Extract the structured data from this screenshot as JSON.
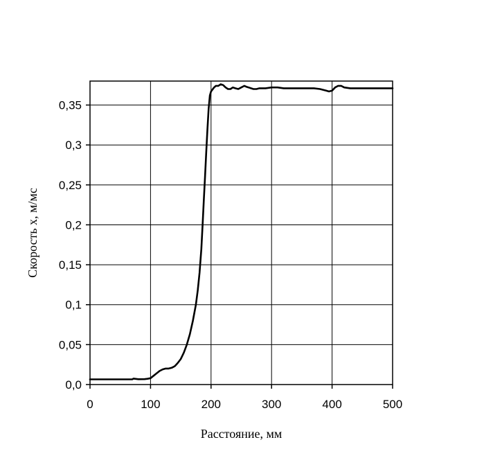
{
  "chart_data": {
    "type": "line",
    "title": "",
    "xlabel": "Расстояние, мм",
    "ylabel": "Скорость x, м/мс",
    "xlim": [
      0,
      500
    ],
    "ylim": [
      0,
      0.38
    ],
    "x_ticks": [
      0,
      100,
      200,
      300,
      400,
      500
    ],
    "x_tick_labels": [
      "0",
      "100",
      "200",
      "300",
      "400",
      "500"
    ],
    "y_ticks": [
      0.0,
      0.05,
      0.1,
      0.15,
      0.2,
      0.25,
      0.3,
      0.35
    ],
    "y_tick_labels": [
      "0,0",
      "0,05",
      "0,1",
      "0,15",
      "0,2",
      "0,25",
      "0,3",
      "0,35"
    ],
    "grid": true,
    "series": [
      {
        "x": [
          0,
          30,
          60,
          70,
          72,
          80,
          90,
          95,
          100,
          105,
          110,
          115,
          120,
          125,
          130,
          135,
          140,
          145,
          150,
          155,
          160,
          165,
          170,
          175,
          178,
          181,
          184,
          186,
          188,
          190,
          192,
          194,
          196,
          198,
          200,
          202,
          205,
          208,
          212,
          216,
          220,
          224,
          228,
          232,
          236,
          240,
          245,
          250,
          255,
          258,
          262,
          266,
          270,
          275,
          280,
          290,
          300,
          310,
          320,
          330,
          340,
          350,
          360,
          370,
          380,
          390,
          395,
          400,
          405,
          410,
          415,
          420,
          430,
          440,
          450,
          460,
          470,
          480,
          490,
          500
        ],
        "y": [
          0.0065,
          0.0065,
          0.0065,
          0.0066,
          0.0075,
          0.0067,
          0.0068,
          0.0072,
          0.008,
          0.011,
          0.014,
          0.017,
          0.019,
          0.02,
          0.02,
          0.021,
          0.023,
          0.027,
          0.032,
          0.04,
          0.05,
          0.063,
          0.08,
          0.1,
          0.118,
          0.14,
          0.17,
          0.2,
          0.23,
          0.26,
          0.29,
          0.32,
          0.345,
          0.362,
          0.367,
          0.369,
          0.372,
          0.374,
          0.374,
          0.376,
          0.375,
          0.372,
          0.37,
          0.37,
          0.372,
          0.371,
          0.37,
          0.372,
          0.374,
          0.373,
          0.372,
          0.371,
          0.37,
          0.37,
          0.371,
          0.371,
          0.372,
          0.372,
          0.371,
          0.371,
          0.371,
          0.371,
          0.371,
          0.371,
          0.37,
          0.368,
          0.367,
          0.368,
          0.372,
          0.374,
          0.374,
          0.372,
          0.371,
          0.371,
          0.371,
          0.371,
          0.371,
          0.371,
          0.371,
          0.371
        ]
      }
    ]
  }
}
